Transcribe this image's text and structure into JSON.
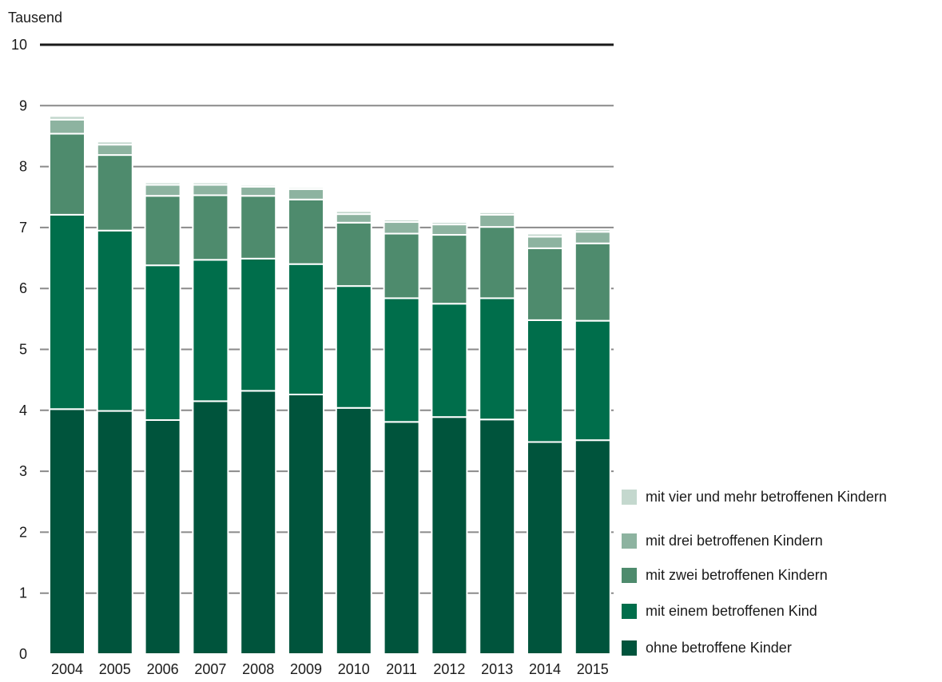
{
  "chart_data": {
    "type": "bar",
    "stacked": true,
    "unit_label": "Tausend",
    "title": "",
    "xlabel": "",
    "ylabel": "",
    "ylim": [
      0,
      10
    ],
    "yticks": [
      0,
      1,
      2,
      3,
      4,
      5,
      6,
      7,
      8,
      9,
      10
    ],
    "grid": true,
    "legend_position": "right-bottom",
    "categories": [
      "2004",
      "2005",
      "2006",
      "2007",
      "2008",
      "2009",
      "2010",
      "2011",
      "2012",
      "2013",
      "2014",
      "2015"
    ],
    "series": [
      {
        "name": "ohne betroffene Kinder",
        "color": "#00543c",
        "values": [
          4.02,
          3.99,
          3.84,
          4.15,
          4.32,
          4.26,
          4.04,
          3.81,
          3.89,
          3.85,
          3.48,
          3.51
        ]
      },
      {
        "name": "mit einem betroffenen Kind",
        "color": "#006e4b",
        "values": [
          3.19,
          2.96,
          2.54,
          2.32,
          2.17,
          2.14,
          2.0,
          2.03,
          1.86,
          1.99,
          2.0,
          1.96
        ]
      },
      {
        "name": "mit zwei betroffenen Kindern",
        "color": "#4e8b6d",
        "values": [
          1.33,
          1.24,
          1.14,
          1.06,
          1.03,
          1.06,
          1.04,
          1.06,
          1.13,
          1.17,
          1.18,
          1.27
        ]
      },
      {
        "name": "mit drei betroffenen Kindern",
        "color": "#8db3a0",
        "values": [
          0.23,
          0.17,
          0.18,
          0.17,
          0.15,
          0.17,
          0.14,
          0.19,
          0.17,
          0.2,
          0.19,
          0.19
        ]
      },
      {
        "name": "mit vier und mehr betroffenen Kindern",
        "color": "#c4d8ce",
        "values": [
          0.06,
          0.05,
          0.04,
          0.04,
          0.03,
          0.03,
          0.05,
          0.04,
          0.04,
          0.04,
          0.05,
          0.04
        ]
      }
    ],
    "legend_order": [
      4,
      3,
      2,
      1,
      0
    ]
  }
}
